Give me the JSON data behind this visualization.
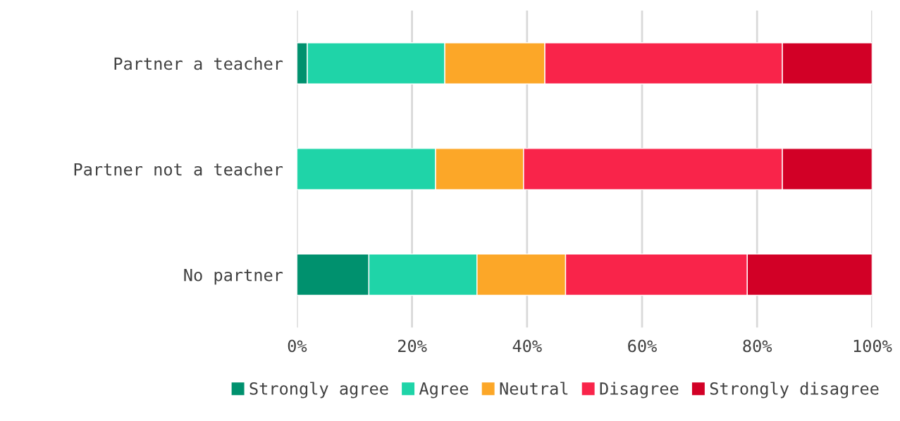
{
  "chart_data": {
    "type": "bar",
    "orientation": "horizontal",
    "stacked": true,
    "categories": [
      "Partner a teacher",
      "Partner not a teacher",
      "No partner"
    ],
    "series": [
      {
        "name": "Strongly agree",
        "color": "#00916e",
        "values": [
          1.8,
          0,
          12.5
        ]
      },
      {
        "name": "Agree",
        "color": "#1fd4a8",
        "values": [
          23.9,
          24.1,
          18.8
        ]
      },
      {
        "name": "Neutral",
        "color": "#fca728",
        "values": [
          17.4,
          15.3,
          15.4
        ]
      },
      {
        "name": "Disagree",
        "color": "#f9244a",
        "values": [
          41.3,
          45.0,
          31.6
        ]
      },
      {
        "name": "Strongly disagree",
        "color": "#d20026",
        "values": [
          15.6,
          15.6,
          21.7
        ]
      }
    ],
    "xlim": [
      0,
      100
    ],
    "xticks": [
      {
        "value": 0,
        "label": "0%"
      },
      {
        "value": 20,
        "label": "20%"
      },
      {
        "value": 40,
        "label": "40%"
      },
      {
        "value": 60,
        "label": "60%"
      },
      {
        "value": 80,
        "label": "80%"
      },
      {
        "value": 100,
        "label": "100%"
      }
    ],
    "grid": "x",
    "legend": "bottom"
  }
}
